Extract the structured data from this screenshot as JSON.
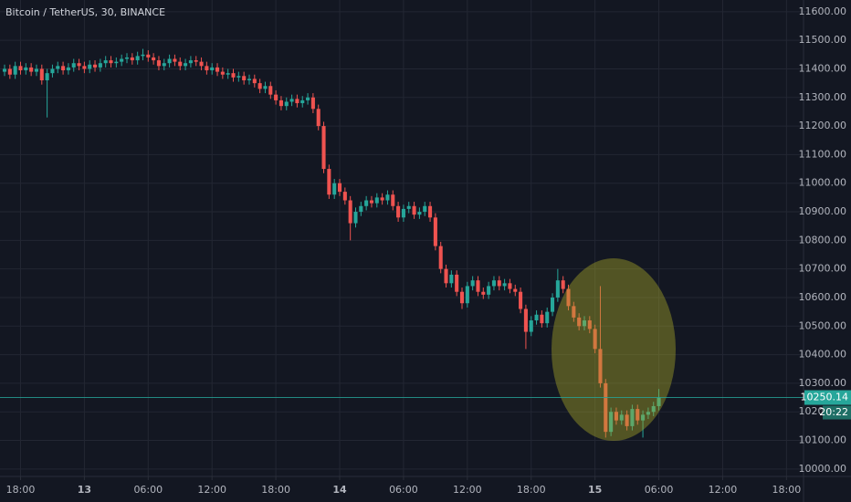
{
  "chart_data": {
    "type": "candlestick",
    "title": "Bitcoin / TetherUS, 30, BINANCE",
    "up_color": "#26a69a",
    "down_color": "#ef5350",
    "grid": true,
    "xlim": [
      -0.86,
      150.2
    ],
    "xticks": [
      {
        "value": 3,
        "label": "18:00"
      },
      {
        "value": 15,
        "label": "13"
      },
      {
        "value": 27,
        "label": "06:00"
      },
      {
        "value": 39,
        "label": "12:00"
      },
      {
        "value": 51,
        "label": "18:00"
      },
      {
        "value": 63,
        "label": "14"
      },
      {
        "value": 75,
        "label": "06:00"
      },
      {
        "value": 87,
        "label": "12:00"
      },
      {
        "value": 99,
        "label": "18:00"
      },
      {
        "value": 111,
        "label": "15"
      },
      {
        "value": 123,
        "label": "06:00"
      },
      {
        "value": 135,
        "label": "12:00"
      },
      {
        "value": 147,
        "label": "18:00"
      }
    ],
    "ylim": [
      9974,
      11641
    ],
    "yticks": [
      {
        "value": 10000,
        "label": "10000.00"
      },
      {
        "value": 10100,
        "label": "10100.00"
      },
      {
        "value": 10200,
        "label": "10200.00"
      },
      {
        "value": 10300,
        "label": "10300.00"
      },
      {
        "value": 10400,
        "label": "10400.00"
      },
      {
        "value": 10500,
        "label": "10500.00"
      },
      {
        "value": 10600,
        "label": "10600.00"
      },
      {
        "value": 10700,
        "label": "10700.00"
      },
      {
        "value": 10800,
        "label": "10800.00"
      },
      {
        "value": 10900,
        "label": "10900.00"
      },
      {
        "value": 11000,
        "label": "11000.00"
      },
      {
        "value": 11100,
        "label": "11100.00"
      },
      {
        "value": 11200,
        "label": "11200.00"
      },
      {
        "value": 11300,
        "label": "11300.00"
      },
      {
        "value": 11400,
        "label": "11400.00"
      },
      {
        "value": 11500,
        "label": "11500.00"
      },
      {
        "value": 11600,
        "label": "11600.00"
      }
    ],
    "last_price": 10250.14,
    "countdown": "20:22",
    "open": [
      11390,
      11400,
      11380,
      11410,
      11395,
      11405,
      11390,
      11400,
      11360,
      11385,
      11400,
      11410,
      11395,
      11405,
      11420,
      11410,
      11400,
      11415,
      11405,
      11420,
      11430,
      11420,
      11425,
      11435,
      11440,
      11430,
      11445,
      11450,
      11440,
      11430,
      11410,
      11420,
      11435,
      11425,
      11410,
      11420,
      11430,
      11425,
      11410,
      11395,
      11405,
      11390,
      11380,
      11385,
      11370,
      11375,
      11360,
      11365,
      11350,
      11330,
      11340,
      11310,
      11290,
      11270,
      11285,
      11295,
      11280,
      11290,
      11300,
      11260,
      11200,
      11050,
      10960,
      11000,
      10970,
      10940,
      10860,
      10900,
      10920,
      10940,
      10930,
      10950,
      10940,
      10960,
      10920,
      10880,
      10910,
      10920,
      10890,
      10900,
      10920,
      10880,
      10780,
      10700,
      10650,
      10680,
      10620,
      10580,
      10640,
      10660,
      10620,
      10610,
      10640,
      10660,
      10640,
      10650,
      10630,
      10620,
      10560,
      10480,
      10520,
      10540,
      10510,
      10550,
      10600,
      10660,
      10630,
      10570,
      10530,
      10500,
      10520,
      10490,
      10420,
      10300,
      10130,
      10200,
      10170,
      10190,
      10150,
      10210,
      10170,
      10190,
      10200,
      10220
    ],
    "high": [
      11415,
      11415,
      11425,
      11425,
      11420,
      11420,
      11415,
      11415,
      11400,
      11415,
      11425,
      11425,
      11420,
      11435,
      11435,
      11425,
      11430,
      11430,
      11435,
      11445,
      11445,
      11440,
      11450,
      11455,
      11455,
      11460,
      11470,
      11465,
      11455,
      11445,
      11435,
      11450,
      11450,
      11440,
      11435,
      11445,
      11445,
      11440,
      11425,
      11420,
      11420,
      11405,
      11400,
      11400,
      11390,
      11390,
      11380,
      11380,
      11365,
      11355,
      11355,
      11325,
      11305,
      11300,
      11310,
      11310,
      11305,
      11315,
      11315,
      11275,
      11215,
      11065,
      11015,
      11015,
      10985,
      10955,
      10915,
      10935,
      10955,
      10955,
      10965,
      10965,
      10975,
      10975,
      10935,
      10925,
      10935,
      10935,
      10915,
      10935,
      10935,
      10895,
      10795,
      10715,
      10695,
      10695,
      10635,
      10655,
      10675,
      10675,
      10635,
      10655,
      10675,
      10675,
      10665,
      10665,
      10645,
      10635,
      10575,
      10535,
      10555,
      10555,
      10565,
      10615,
      10700,
      10675,
      10645,
      10585,
      10545,
      10535,
      10535,
      10505,
      10640,
      10315,
      10215,
      10215,
      10205,
      10205,
      10225,
      10225,
      10205,
      10215,
      10235,
      10280
    ],
    "low": [
      11375,
      11365,
      11365,
      11380,
      11380,
      11375,
      11375,
      11345,
      11230,
      11370,
      11385,
      11380,
      11380,
      11390,
      11395,
      11385,
      11385,
      11390,
      11390,
      11405,
      11405,
      11405,
      11410,
      11420,
      11415,
      11415,
      11430,
      11425,
      11415,
      11395,
      11395,
      11405,
      11410,
      11395,
      11395,
      11405,
      11410,
      11395,
      11380,
      11380,
      11375,
      11365,
      11365,
      11355,
      11355,
      11345,
      11345,
      11335,
      11315,
      11315,
      11295,
      11275,
      11255,
      11255,
      11270,
      11265,
      11265,
      11275,
      11245,
      11185,
      11035,
      10945,
      10945,
      10955,
      10925,
      10800,
      10845,
      10885,
      10905,
      10915,
      10915,
      10925,
      10925,
      10905,
      10865,
      10865,
      10895,
      10875,
      10875,
      10885,
      10865,
      10765,
      10685,
      10635,
      10635,
      10605,
      10560,
      10565,
      10625,
      10605,
      10595,
      10595,
      10625,
      10625,
      10625,
      10615,
      10605,
      10545,
      10420,
      10465,
      10505,
      10495,
      10495,
      10535,
      10585,
      10615,
      10555,
      10515,
      10485,
      10485,
      10475,
      10405,
      10285,
      10110,
      10115,
      10155,
      10155,
      10135,
      10135,
      10155,
      10110,
      10175,
      10185,
      10205
    ],
    "close": [
      11400,
      11380,
      11410,
      11395,
      11405,
      11390,
      11400,
      11360,
      11385,
      11400,
      11410,
      11395,
      11405,
      11420,
      11410,
      11400,
      11415,
      11405,
      11420,
      11430,
      11420,
      11425,
      11435,
      11440,
      11430,
      11445,
      11450,
      11440,
      11430,
      11410,
      11420,
      11435,
      11425,
      11410,
      11420,
      11430,
      11425,
      11410,
      11395,
      11405,
      11390,
      11380,
      11385,
      11370,
      11375,
      11360,
      11365,
      11350,
      11330,
      11340,
      11310,
      11290,
      11270,
      11285,
      11295,
      11280,
      11290,
      11300,
      11260,
      11200,
      11050,
      10960,
      11000,
      10970,
      10940,
      10860,
      10900,
      10920,
      10940,
      10930,
      10950,
      10940,
      10960,
      10920,
      10880,
      10910,
      10920,
      10890,
      10900,
      10920,
      10880,
      10780,
      10700,
      10650,
      10680,
      10620,
      10580,
      10640,
      10660,
      10620,
      10610,
      10640,
      10660,
      10640,
      10650,
      10630,
      10620,
      10560,
      10480,
      10520,
      10540,
      10510,
      10550,
      10600,
      10660,
      10630,
      10570,
      10530,
      10500,
      10520,
      10490,
      10420,
      10300,
      10130,
      10200,
      10170,
      10190,
      10150,
      10210,
      10170,
      10190,
      10200,
      10220,
      10250
    ]
  }
}
